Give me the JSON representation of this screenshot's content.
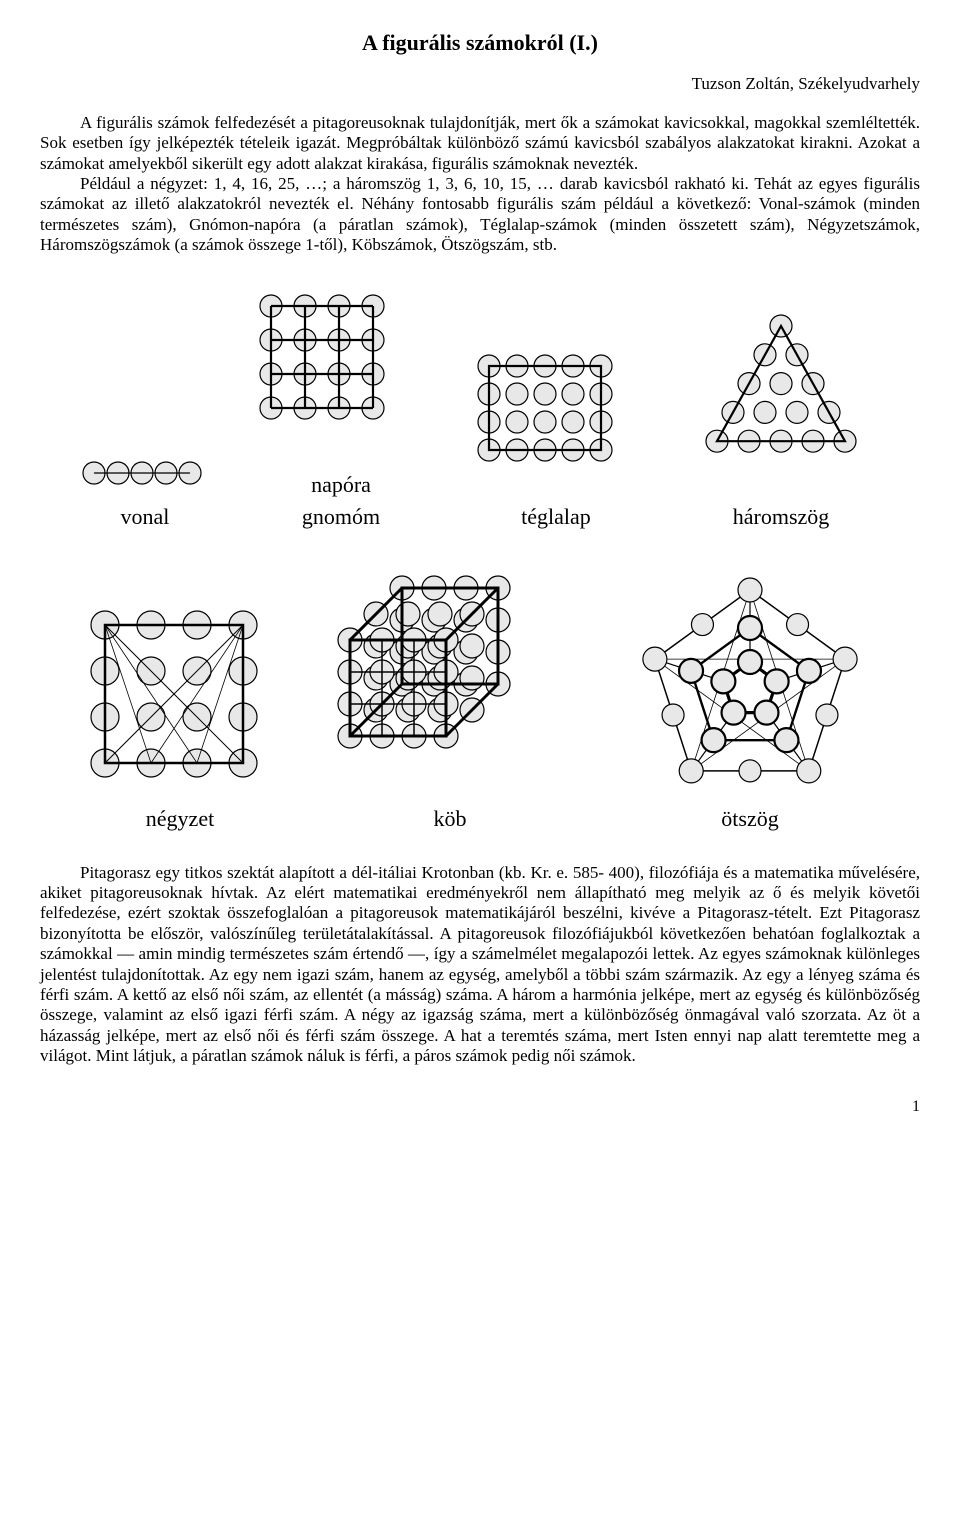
{
  "title": "A figurális számokról (I.)",
  "author": "Tuzson Zoltán, Székelyudvarhely",
  "para1": "A figurális számok felfedezését a pitagoreusoknak tulajdonítják, mert ők a számokat kavicsokkal, magokkal szemléltették. Sok esetben így jelképezték tételeik igazát. Megpróbáltak különböző számú kavicsból szabályos alakzatokat kirakni. Azokat a számokat amelyekből sikerült egy adott alakzat kirakása, figurális számoknak nevezték.",
  "para2": "Például a négyzet: 1, 4, 16, 25, …; a háromszög 1, 3, 6, 10, 15, … darab kavicsból rakható ki. Tehát az egyes figurális számokat az illető alakzatokról nevezték el. Néhány fontosabb figurális szám például a következő: Vonal-számok (minden természetes szám), Gnómon-napóra (a páratlan számok), Téglalap-számok (minden összetett szám), Négyzetszámok, Háromszögszámok (a számok összege 1-től), Köbszámok, Ötszögszám, stb.",
  "para3": "Pitagorasz egy titkos szektát alapított a dél-itáliai Krotonban (kb. Kr. e. 585- 400), filozófiája és a matematika művelésére, akiket pitagoreusoknak hívtak. Az elért matematikai eredményekről nem állapítható meg melyik az ő és melyik követői felfedezése, ezért szoktak összefoglalóan a pitagoreusok matematikájáról beszélni, kivéve a Pitagorasz-tételt. Ezt Pitagorasz bizonyította be először, valószínűleg területátalakítással. A pitagoreusok filozófiájukból következően behatóan foglalkoztak a számokkal — amin mindig természetes szám értendő —, így a számelmélet megalapozói lettek. Az egyes számoknak különleges jelentést tulajdonítottak. Az egy nem igazi szám, hanem az egység, amelyből a többi szám származik. Az egy a lényeg száma és férfi szám. A kettő az első női szám, az ellentét (a másság) száma. A három a harmónia jelképe, mert az egység és különbözőség összege, valamint az első igazi férfi szám. A négy az igazság száma, mert a különbözőség önmagával való szorzata. Az öt a házasság jelképe, mert az első női és férfi szám összege. A hat a teremtés száma, mert Isten ennyi nap alatt teremtette meg a világot. Mint látjuk, a páratlan számok náluk is férfi, a páros számok pedig női számok.",
  "labels": {
    "vonal": "vonal",
    "napora1": "napóra",
    "napora2": "gnomóm",
    "teglalap": "téglalap",
    "haromszog": "háromszög",
    "negyzet": "négyzet",
    "kob": "köb",
    "otszog": "ötszög"
  },
  "page_number": "1",
  "style": {
    "circle_fill": "#e8e8e8",
    "circle_stroke": "#000000",
    "circle_r": 11,
    "line_stroke": "#000000",
    "heavy_stroke_w": 3,
    "light_stroke_w": 1
  }
}
